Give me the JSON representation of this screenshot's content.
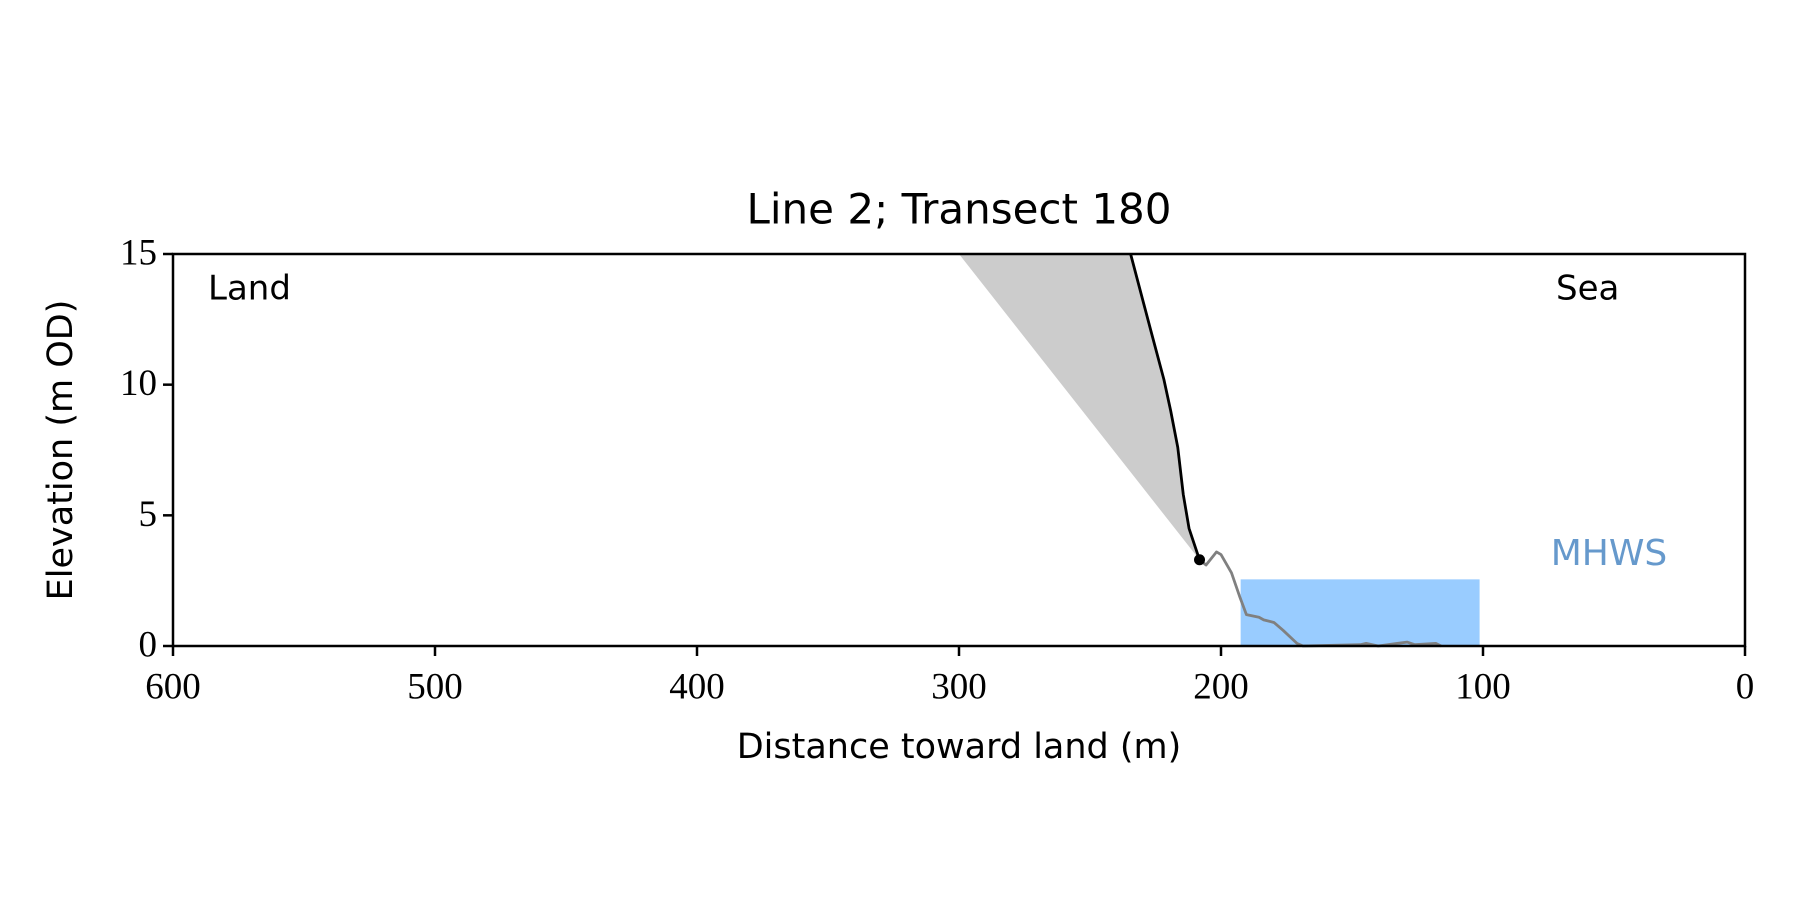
{
  "chart_data": {
    "type": "line",
    "title": "Line 2; Transect 180",
    "xlabel": "Distance toward land (m)",
    "ylabel": "Elevation (m OD)",
    "annotations": [
      "Land",
      "Sea"
    ],
    "xlim": [
      600,
      0
    ],
    "xticks": [
      600,
      500,
      400,
      300,
      200,
      100,
      0
    ],
    "ylim": [
      0,
      15
    ],
    "yticks": [
      0,
      5,
      10,
      15
    ],
    "grid": false,
    "fill_region": {
      "color": "#cccccc",
      "x": [
        300,
        234.5,
        226.6,
        221.8,
        219.2,
        216.5,
        214.4,
        212.2,
        208.2
      ],
      "values": [
        15,
        15,
        12,
        10.2,
        9.0,
        7.6,
        5.8,
        4.5,
        3.3
      ]
    },
    "mhws": {
      "label": "MHWS",
      "color": "#99ccff",
      "label_color": "#6699cc",
      "x": [
        192.5,
        101.3
      ],
      "y": [
        0,
        2.55
      ]
    },
    "series": [
      {
        "color": "#000000",
        "x": [
          234.5,
          226.6,
          221.8,
          219.2,
          216.5,
          214.4,
          212.2,
          208.2
        ],
        "values": [
          15,
          12,
          10.2,
          9.0,
          7.6,
          5.8,
          4.5,
          3.3
        ]
      },
      {
        "color": "#808080",
        "x": [
          208.2,
          205.7,
          201.7,
          200,
          196,
          192.9,
          190.3,
          185.5,
          183.7,
          179.8,
          176.3,
          171,
          168.7,
          146.8,
          144.6,
          140,
          129,
          126,
          118,
          116
        ],
        "values": [
          3.3,
          3.1,
          3.6,
          3.5,
          2.8,
          1.9,
          1.2,
          1.1,
          1.0,
          0.9,
          0.6,
          0.1,
          0,
          0.05,
          0.1,
          0,
          0.15,
          0.05,
          0.1,
          0
        ]
      }
    ],
    "point": {
      "color": "#000000",
      "x": 208.2,
      "y": 3.3
    }
  }
}
